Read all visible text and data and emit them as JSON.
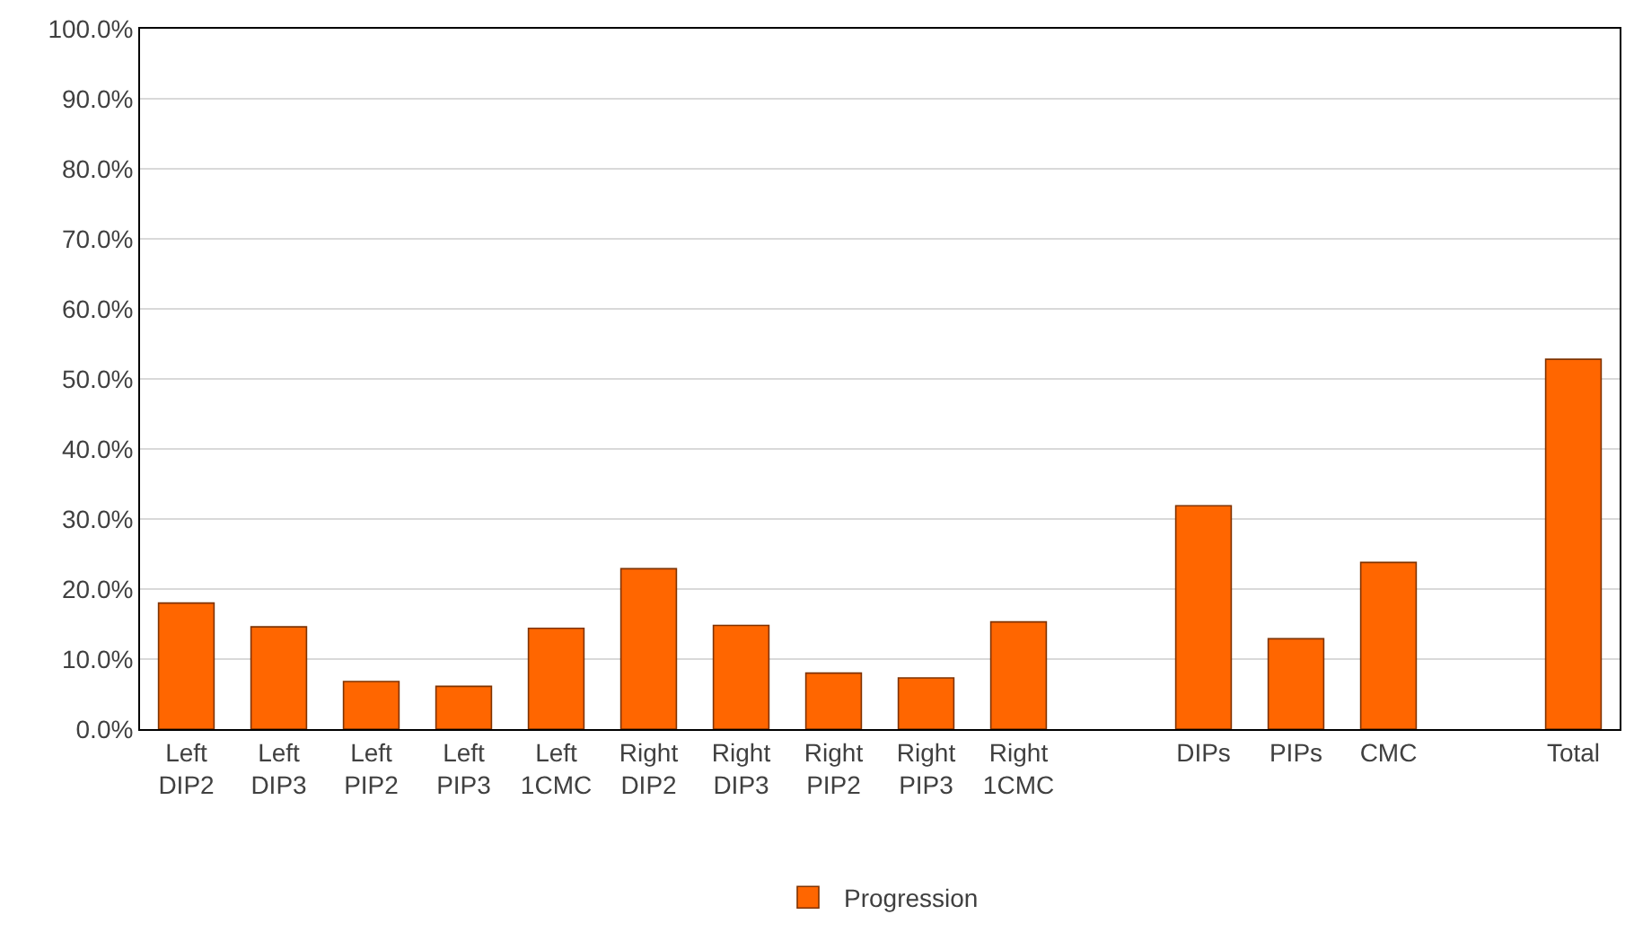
{
  "chart_data": {
    "type": "bar",
    "categories": [
      "Left DIP2",
      "Left DIP3",
      "Left PIP2",
      "Left PIP3",
      "Left 1CMC",
      "Right DIP2",
      "Right DIP3",
      "Right PIP2",
      "Right PIP3",
      "Right 1CMC",
      null,
      "DIPs",
      "PIPs",
      "CMC",
      null,
      "Total"
    ],
    "series": [
      {
        "name": "Progression",
        "color": "#ff6600",
        "values": [
          18.0,
          14.6,
          6.8,
          6.1,
          14.4,
          22.9,
          14.8,
          8.0,
          7.3,
          15.3,
          null,
          31.9,
          12.9,
          23.8,
          null,
          52.8
        ]
      }
    ],
    "ylim": [
      0,
      100
    ],
    "yticks": [
      {
        "value": 0,
        "label": "0.0%"
      },
      {
        "value": 10,
        "label": "10.0%"
      },
      {
        "value": 20,
        "label": "20.0%"
      },
      {
        "value": 30,
        "label": "30.0%"
      },
      {
        "value": 40,
        "label": "40.0%"
      },
      {
        "value": 50,
        "label": "50.0%"
      },
      {
        "value": 60,
        "label": "60.0%"
      },
      {
        "value": 70,
        "label": "70.0%"
      },
      {
        "value": 80,
        "label": "80.0%"
      },
      {
        "value": 90,
        "label": "90.0%"
      },
      {
        "value": 100,
        "label": "100.0%"
      }
    ],
    "grid": "y",
    "legend": "bottom"
  }
}
